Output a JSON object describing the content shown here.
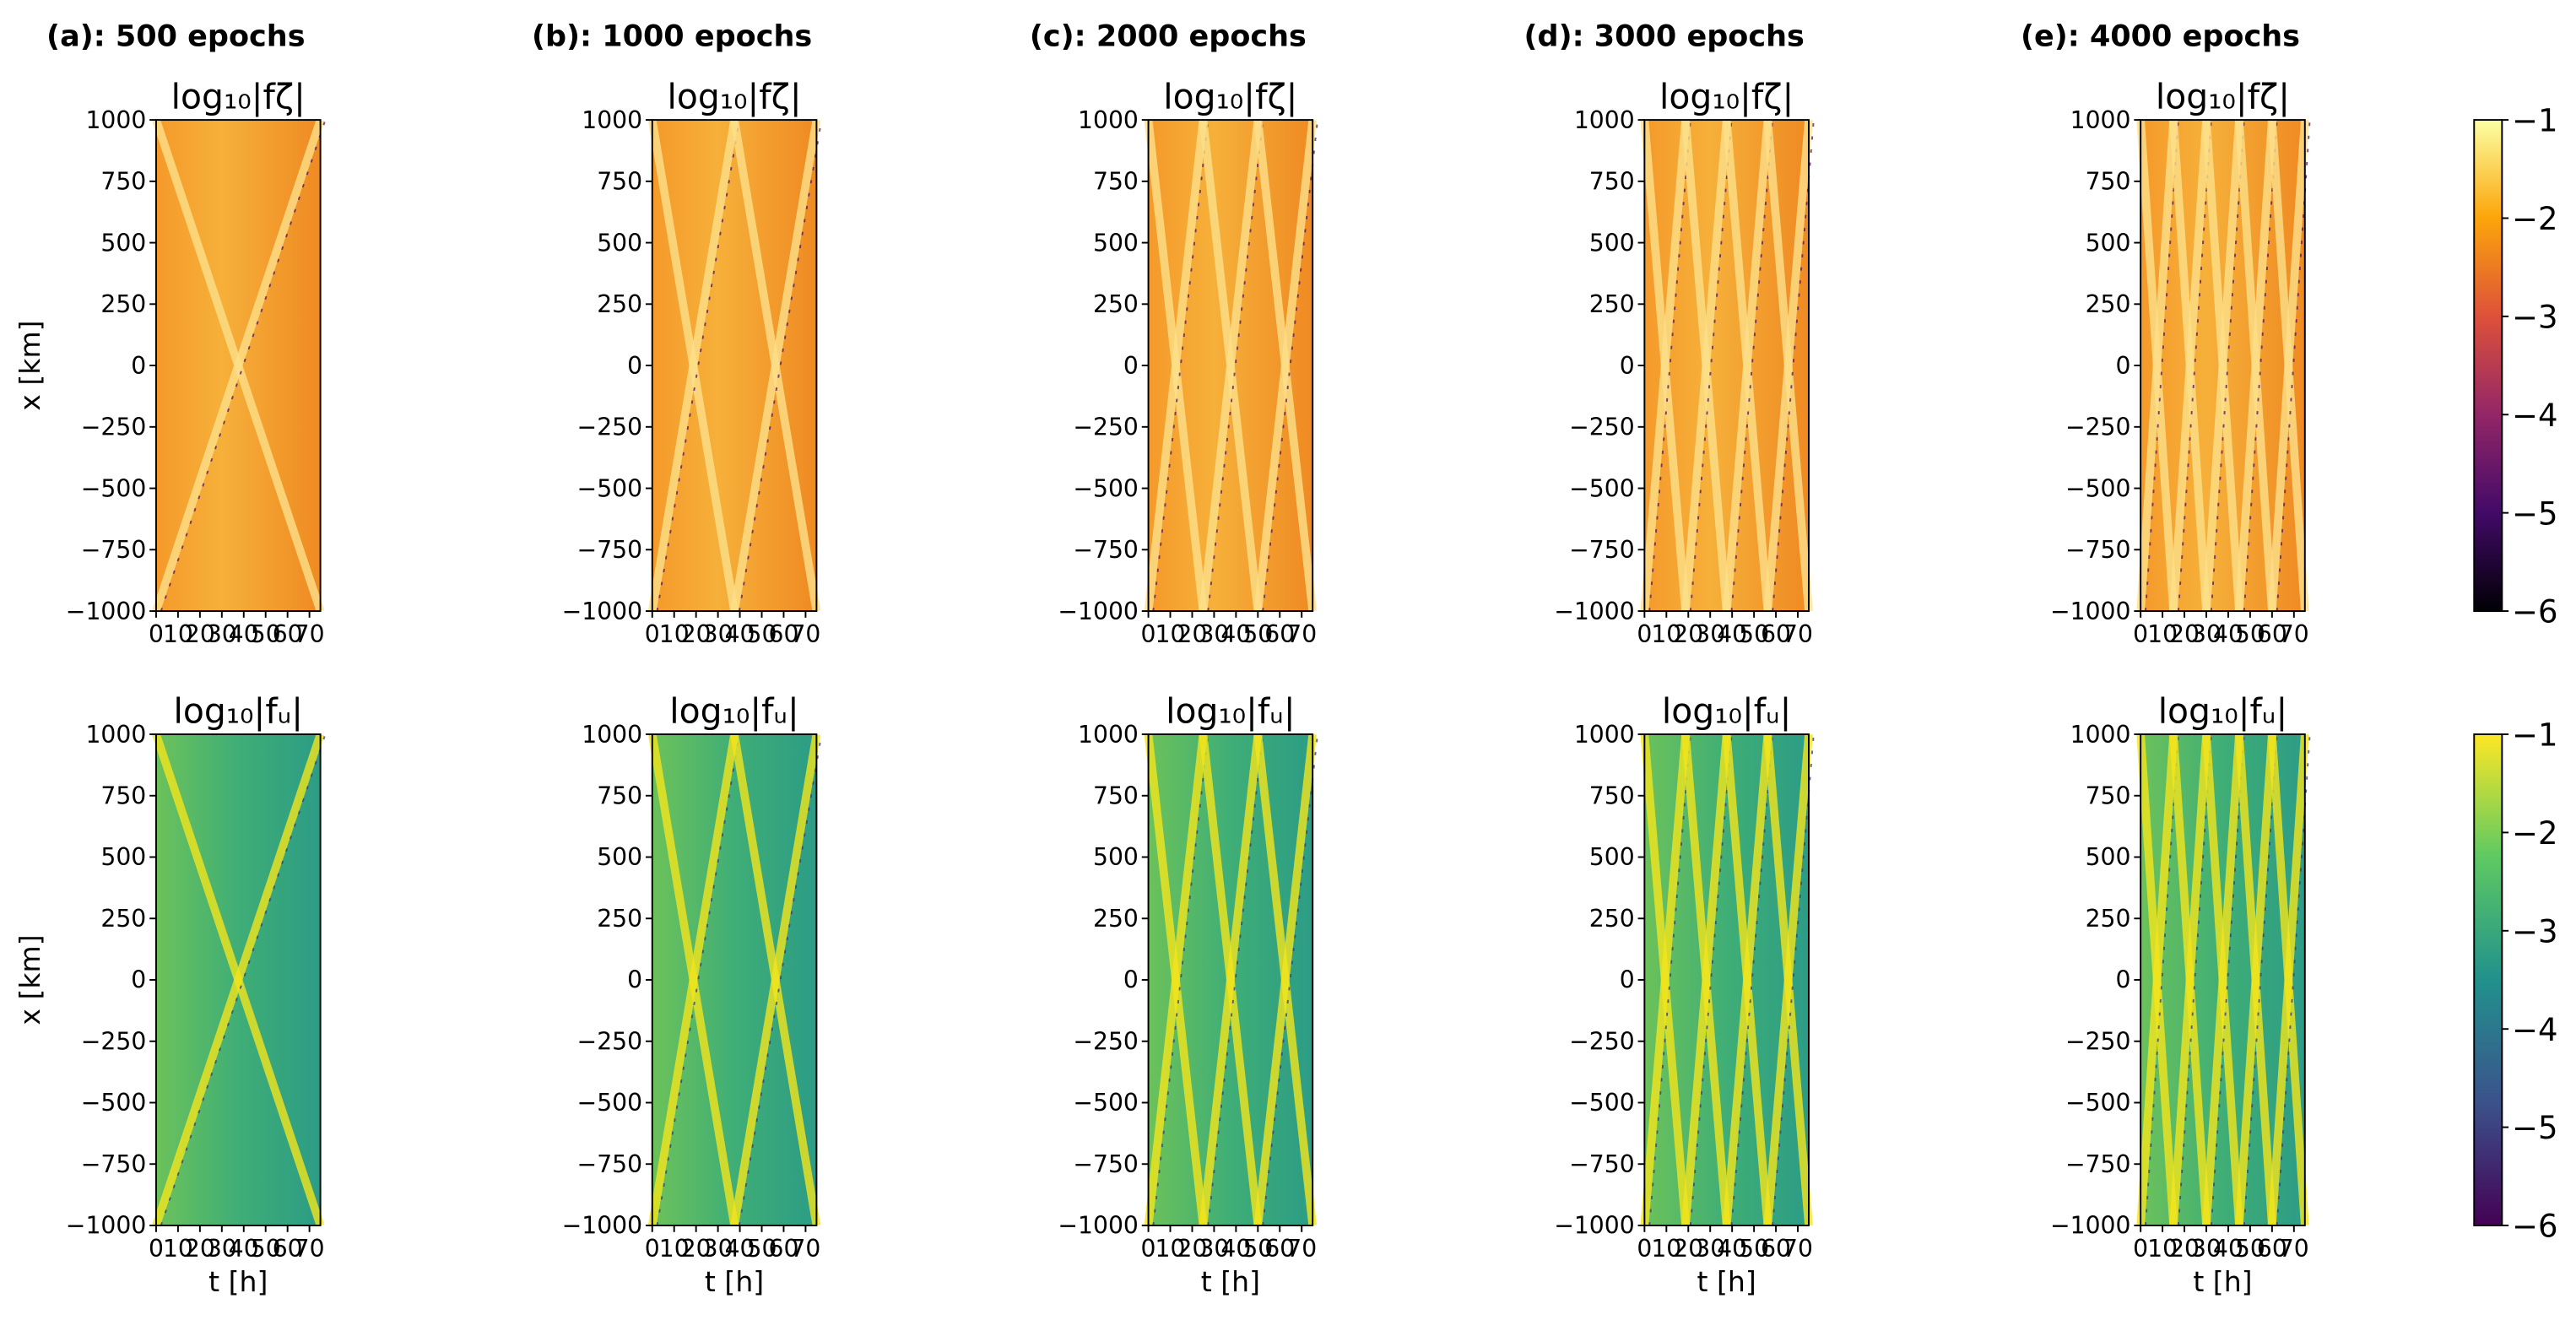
{
  "chart_data": [
    {
      "type": "heatmap",
      "panel_label": "(a): 500 epochs",
      "title": "log₁₀|fζ|",
      "ylabel": "x [km]",
      "colormap": "inferno",
      "xlim": [
        0,
        75
      ],
      "ylim": [
        -1000,
        1000
      ],
      "xticks": [
        0,
        10,
        20,
        30,
        40,
        50,
        60,
        70
      ],
      "yticks": [
        {
          "value": -1000,
          "label": "−1000"
        },
        {
          "value": -750,
          "label": "−750"
        },
        {
          "value": -500,
          "label": "−500"
        },
        {
          "value": -250,
          "label": "−250"
        },
        0,
        250,
        500,
        750,
        1000
      ]
    },
    {
      "type": "heatmap",
      "panel_label": "(b): 1000 epochs",
      "title": "log₁₀|fζ|",
      "colormap": "inferno",
      "xlim": [
        0,
        75
      ],
      "ylim": [
        -1000,
        1000
      ],
      "xticks": [
        0,
        10,
        20,
        30,
        40,
        50,
        60,
        70
      ],
      "yticks": [
        {
          "value": -1000,
          "label": "−1000"
        },
        {
          "value": -750,
          "label": "−750"
        },
        {
          "value": -500,
          "label": "−500"
        },
        {
          "value": -250,
          "label": "−250"
        },
        0,
        250,
        500,
        750,
        1000
      ]
    },
    {
      "type": "heatmap",
      "panel_label": "(c): 2000 epochs",
      "title": "log₁₀|fζ|",
      "colormap": "inferno",
      "xlim": [
        0,
        75
      ],
      "ylim": [
        -1000,
        1000
      ],
      "xticks": [
        0,
        10,
        20,
        30,
        40,
        50,
        60,
        70
      ],
      "yticks": [
        {
          "value": -1000,
          "label": "−1000"
        },
        {
          "value": -750,
          "label": "−750"
        },
        {
          "value": -500,
          "label": "−500"
        },
        {
          "value": -250,
          "label": "−250"
        },
        0,
        250,
        500,
        750,
        1000
      ]
    },
    {
      "type": "heatmap",
      "panel_label": "(d): 3000 epochs",
      "title": "log₁₀|fζ|",
      "colormap": "inferno",
      "xlim": [
        0,
        75
      ],
      "ylim": [
        -1000,
        1000
      ],
      "xticks": [
        0,
        10,
        20,
        30,
        40,
        50,
        60,
        70
      ],
      "yticks": [
        {
          "value": -1000,
          "label": "−1000"
        },
        {
          "value": -750,
          "label": "−750"
        },
        {
          "value": -500,
          "label": "−500"
        },
        {
          "value": -250,
          "label": "−250"
        },
        0,
        250,
        500,
        750,
        1000
      ]
    },
    {
      "type": "heatmap",
      "panel_label": "(e): 4000 epochs",
      "title": "log₁₀|fζ|",
      "colormap": "inferno",
      "xlim": [
        0,
        75
      ],
      "ylim": [
        -1000,
        1000
      ],
      "xticks": [
        0,
        10,
        20,
        30,
        40,
        50,
        60,
        70
      ],
      "yticks": [
        {
          "value": -1000,
          "label": "−1000"
        },
        {
          "value": -750,
          "label": "−750"
        },
        {
          "value": -500,
          "label": "−500"
        },
        {
          "value": -250,
          "label": "−250"
        },
        0,
        250,
        500,
        750,
        1000
      ],
      "colorbar": {
        "lim": [
          -6,
          -1
        ],
        "ticks": [
          {
            "value": -1,
            "label": "−1"
          },
          {
            "value": -2,
            "label": "−2"
          },
          {
            "value": -3,
            "label": "−3"
          },
          {
            "value": -4,
            "label": "−4"
          },
          {
            "value": -5,
            "label": "−5"
          },
          {
            "value": -6,
            "label": "−6"
          }
        ]
      }
    },
    {
      "type": "heatmap",
      "title": "log₁₀|fᵤ|",
      "xlabel": "t [h]",
      "ylabel": "x [km]",
      "colormap": "viridis",
      "xlim": [
        0,
        75
      ],
      "ylim": [
        -1000,
        1000
      ],
      "xticks": [
        0,
        10,
        20,
        30,
        40,
        50,
        60,
        70
      ],
      "yticks": [
        {
          "value": -1000,
          "label": "−1000"
        },
        {
          "value": -750,
          "label": "−750"
        },
        {
          "value": -500,
          "label": "−500"
        },
        {
          "value": -250,
          "label": "−250"
        },
        0,
        250,
        500,
        750,
        1000
      ]
    },
    {
      "type": "heatmap",
      "title": "log₁₀|fᵤ|",
      "xlabel": "t [h]",
      "colormap": "viridis",
      "xlim": [
        0,
        75
      ],
      "ylim": [
        -1000,
        1000
      ],
      "xticks": [
        0,
        10,
        20,
        30,
        40,
        50,
        60,
        70
      ],
      "yticks": [
        {
          "value": -1000,
          "label": "−1000"
        },
        {
          "value": -750,
          "label": "−750"
        },
        {
          "value": -500,
          "label": "−500"
        },
        {
          "value": -250,
          "label": "−250"
        },
        0,
        250,
        500,
        750,
        1000
      ]
    },
    {
      "type": "heatmap",
      "title": "log₁₀|fᵤ|",
      "xlabel": "t [h]",
      "colormap": "viridis",
      "xlim": [
        0,
        75
      ],
      "ylim": [
        -1000,
        1000
      ],
      "xticks": [
        0,
        10,
        20,
        30,
        40,
        50,
        60,
        70
      ],
      "yticks": [
        {
          "value": -1000,
          "label": "−1000"
        },
        {
          "value": -750,
          "label": "−750"
        },
        {
          "value": -500,
          "label": "−500"
        },
        {
          "value": -250,
          "label": "−250"
        },
        0,
        250,
        500,
        750,
        1000
      ]
    },
    {
      "type": "heatmap",
      "title": "log₁₀|fᵤ|",
      "xlabel": "t [h]",
      "colormap": "viridis",
      "xlim": [
        0,
        75
      ],
      "ylim": [
        -1000,
        1000
      ],
      "xticks": [
        0,
        10,
        20,
        30,
        40,
        50,
        60,
        70
      ],
      "yticks": [
        {
          "value": -1000,
          "label": "−1000"
        },
        {
          "value": -750,
          "label": "−750"
        },
        {
          "value": -500,
          "label": "−500"
        },
        {
          "value": -250,
          "label": "−250"
        },
        0,
        250,
        500,
        750,
        1000
      ]
    },
    {
      "type": "heatmap",
      "title": "log₁₀|fᵤ|",
      "xlabel": "t [h]",
      "colormap": "viridis",
      "xlim": [
        0,
        75
      ],
      "ylim": [
        -1000,
        1000
      ],
      "xticks": [
        0,
        10,
        20,
        30,
        40,
        50,
        60,
        70
      ],
      "yticks": [
        {
          "value": -1000,
          "label": "−1000"
        },
        {
          "value": -750,
          "label": "−750"
        },
        {
          "value": -500,
          "label": "−500"
        },
        {
          "value": -250,
          "label": "−250"
        },
        0,
        250,
        500,
        750,
        1000
      ],
      "colorbar": {
        "lim": [
          -6,
          -1
        ],
        "ticks": [
          {
            "value": -1,
            "label": "−1"
          },
          {
            "value": -2,
            "label": "−2"
          },
          {
            "value": -3,
            "label": "−3"
          },
          {
            "value": -4,
            "label": "−4"
          },
          {
            "value": -5,
            "label": "−5"
          },
          {
            "value": -6,
            "label": "−6"
          }
        ]
      }
    }
  ]
}
